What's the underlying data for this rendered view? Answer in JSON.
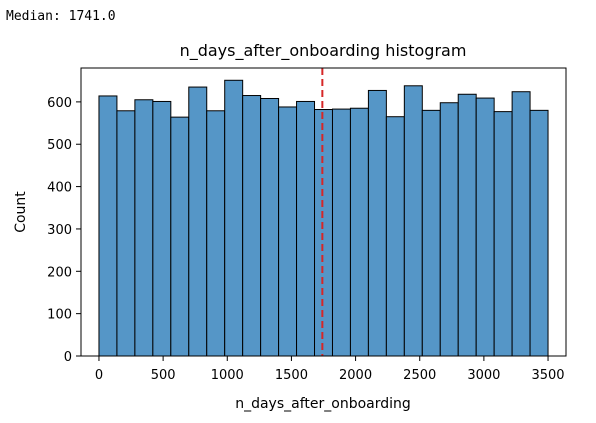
{
  "output": {
    "median_text": "Median: 1741.0"
  },
  "chart_data": {
    "type": "bar",
    "title": "n_days_after_onboarding histogram",
    "xlabel": "n_days_after_onboarding",
    "ylabel": "Count",
    "xlim": [
      -140,
      3640
    ],
    "ylim": [
      0,
      680
    ],
    "x_ticks": [
      0,
      500,
      1000,
      1500,
      2000,
      2500,
      3000,
      3500
    ],
    "y_ticks": [
      0,
      100,
      200,
      300,
      400,
      500,
      600
    ],
    "bin_start": 0,
    "bin_width": 140,
    "counts": [
      614,
      579,
      605,
      601,
      564,
      635,
      579,
      651,
      615,
      608,
      588,
      601,
      582,
      583,
      585,
      627,
      565,
      638,
      580,
      598,
      618,
      609,
      577,
      624,
      580
    ],
    "median_line": {
      "x": 1741.0,
      "color": "#d62728"
    },
    "bar_color": "#5596c7",
    "grid": false
  }
}
